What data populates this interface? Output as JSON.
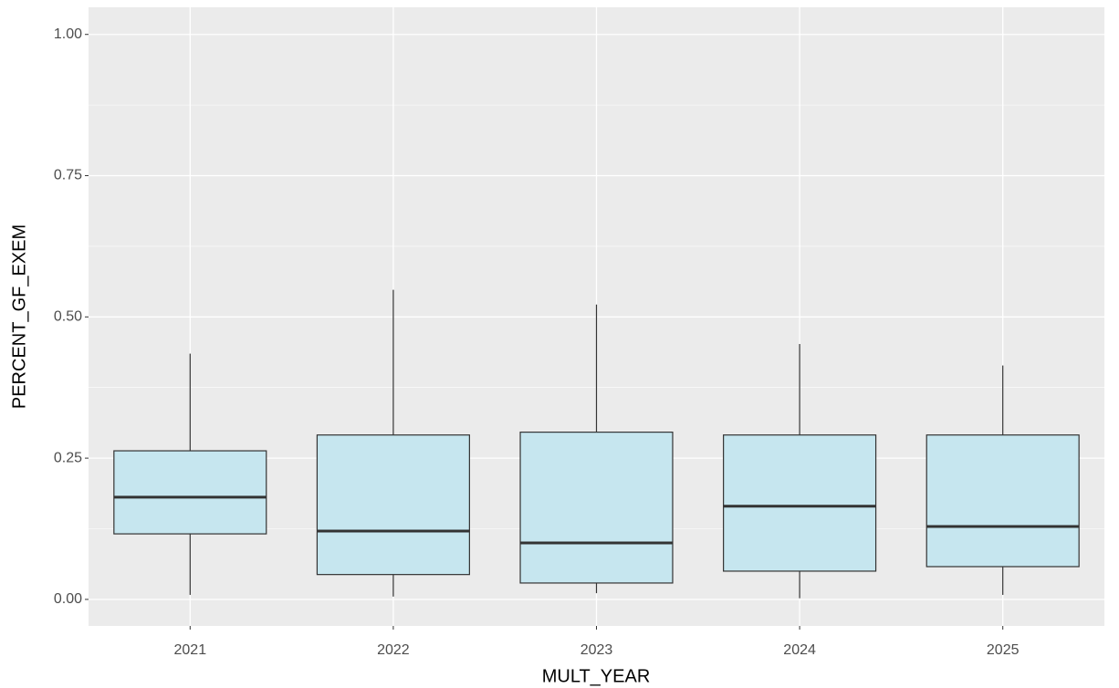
{
  "chart_data": {
    "type": "boxplot",
    "x_label": "MULT_YEAR",
    "y_label": "PERCENT_GF_EXEM",
    "categories": [
      "2021",
      "2022",
      "2023",
      "2024",
      "2025"
    ],
    "boxes": [
      {
        "min": 0.008,
        "q1": 0.116,
        "median": 0.181,
        "q3": 0.263,
        "max": 0.435
      },
      {
        "min": 0.005,
        "q1": 0.044,
        "median": 0.121,
        "q3": 0.291,
        "max": 0.548
      },
      {
        "min": 0.011,
        "q1": 0.029,
        "median": 0.1,
        "q3": 0.296,
        "max": 0.522
      },
      {
        "min": 0.002,
        "q1": 0.05,
        "median": 0.165,
        "q3": 0.291,
        "max": 0.452
      },
      {
        "min": 0.008,
        "q1": 0.058,
        "median": 0.129,
        "q3": 0.291,
        "max": 0.414
      }
    ],
    "color": "#c6e6ef",
    "ylim": [
      -0.047,
      1.048
    ],
    "yticks": [
      {
        "value": 0,
        "label": "0.00"
      },
      {
        "value": 0.25,
        "label": "0.25"
      },
      {
        "value": 0.5,
        "label": "0.50"
      },
      {
        "value": 0.75,
        "label": "0.75"
      },
      {
        "value": 1,
        "label": "1.00"
      }
    ],
    "grid": true
  }
}
